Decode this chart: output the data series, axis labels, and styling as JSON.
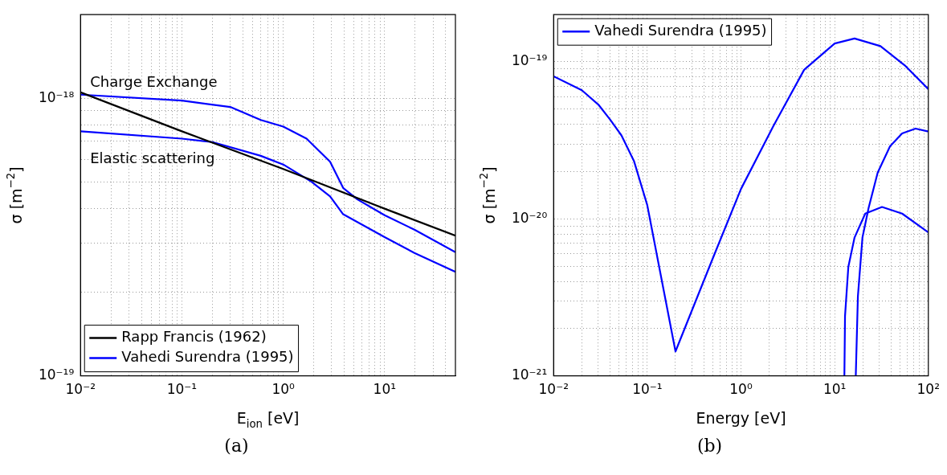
{
  "chart_data": [
    {
      "type": "line",
      "xlabel": "E$_{ion}$ [eV]",
      "ylabel": "σ [m$^{−2}$]",
      "log": "xy",
      "grid": true,
      "legend": "bottom left",
      "marker": "none",
      "line_style": "solid",
      "xlim": [
        0.01,
        50
      ],
      "ylim": [
        1e-19,
        2e-18
      ],
      "xticks": [
        {
          "value": 0.01,
          "label": "10⁻²"
        },
        {
          "value": 0.02,
          "label": null
        },
        {
          "value": 0.03,
          "label": null
        },
        {
          "value": 0.04,
          "label": null
        },
        {
          "value": 0.05,
          "label": null
        },
        {
          "value": 0.06,
          "label": null
        },
        {
          "value": 0.07,
          "label": null
        },
        {
          "value": 0.08,
          "label": null
        },
        {
          "value": 0.09,
          "label": null
        },
        {
          "value": 0.1,
          "label": "10⁻¹"
        },
        {
          "value": 0.2,
          "label": null
        },
        {
          "value": 0.3,
          "label": null
        },
        {
          "value": 0.4,
          "label": null
        },
        {
          "value": 0.5,
          "label": null
        },
        {
          "value": 0.6,
          "label": null
        },
        {
          "value": 0.7,
          "label": null
        },
        {
          "value": 0.8,
          "label": null
        },
        {
          "value": 0.9,
          "label": null
        },
        {
          "value": 1,
          "label": "10⁰"
        },
        {
          "value": 2,
          "label": null
        },
        {
          "value": 3,
          "label": null
        },
        {
          "value": 4,
          "label": null
        },
        {
          "value": 5,
          "label": null
        },
        {
          "value": 6,
          "label": null
        },
        {
          "value": 7,
          "label": null
        },
        {
          "value": 8,
          "label": null
        },
        {
          "value": 9,
          "label": null
        },
        {
          "value": 10,
          "label": "10¹"
        },
        {
          "value": 20,
          "label": null
        },
        {
          "value": 30,
          "label": null
        },
        {
          "value": 40,
          "label": null
        }
      ],
      "yticks": [
        {
          "value": 1e-19,
          "label": "10⁻¹⁹"
        },
        {
          "value": 2e-19,
          "label": null
        },
        {
          "value": 3e-19,
          "label": null
        },
        {
          "value": 4e-19,
          "label": null
        },
        {
          "value": 5e-19,
          "label": null
        },
        {
          "value": 6e-19,
          "label": null
        },
        {
          "value": 7e-19,
          "label": null
        },
        {
          "value": 8e-19,
          "label": null
        },
        {
          "value": 9e-19,
          "label": null
        },
        {
          "value": 1e-18,
          "label": "10⁻¹⁸"
        }
      ],
      "series": [
        {
          "name": "Rapp Francis (1962)",
          "color": "#000000",
          "x": [
            0.01,
            0.1,
            1,
            10,
            50
          ],
          "values": [
            1.05e-18,
            7.6e-19,
            5.56e-19,
            4e-19,
            3.2e-19
          ]
        },
        {
          "name": "Vahedi Surendra (1995)",
          "color": "#0000ff",
          "x": [
            0.01,
            0.1,
            0.3,
            0.6,
            1,
            1.7,
            2.9,
            3.9,
            5.4,
            10,
            19.7,
            50
          ],
          "values": [
            1.03e-18,
            9.8e-19,
            9.3e-19,
            8.35e-19,
            7.9e-19,
            7.15e-19,
            5.9e-19,
            4.75e-19,
            4.32e-19,
            3.79e-19,
            3.36e-19,
            2.79e-19
          ]
        },
        {
          "color": "#0000ff",
          "x": [
            0.01,
            0.1,
            0.2,
            0.6,
            1,
            1.9,
            2.9,
            3.9,
            10,
            19.7,
            50
          ],
          "values": [
            7.6e-19,
            7.15e-19,
            6.95e-19,
            6.2e-19,
            5.77e-19,
            5e-19,
            4.43e-19,
            3.82e-19,
            3.16e-19,
            2.77e-19,
            2.37e-19
          ]
        }
      ],
      "annotations": [
        "Charge Exchange",
        "Elastic scattering",
        "(a)"
      ]
    },
    {
      "type": "line",
      "xlabel": "Energy [eV]",
      "ylabel": "σ [m$^{−2}$]",
      "log": "xy",
      "grid": true,
      "legend": "top left",
      "marker": "none",
      "line_style": "solid",
      "xlim": [
        0.01,
        100
      ],
      "ylim": [
        1e-21,
        2e-19
      ],
      "xticks": [
        {
          "value": 0.01,
          "label": "10⁻²"
        },
        {
          "value": 0.02,
          "label": null
        },
        {
          "value": 0.03,
          "label": null
        },
        {
          "value": 0.04,
          "label": null
        },
        {
          "value": 0.05,
          "label": null
        },
        {
          "value": 0.06,
          "label": null
        },
        {
          "value": 0.07,
          "label": null
        },
        {
          "value": 0.08,
          "label": null
        },
        {
          "value": 0.09,
          "label": null
        },
        {
          "value": 0.1,
          "label": "10⁻¹"
        },
        {
          "value": 0.2,
          "label": null
        },
        {
          "value": 0.3,
          "label": null
        },
        {
          "value": 0.4,
          "label": null
        },
        {
          "value": 0.5,
          "label": null
        },
        {
          "value": 0.6,
          "label": null
        },
        {
          "value": 0.7,
          "label": null
        },
        {
          "value": 0.8,
          "label": null
        },
        {
          "value": 0.9,
          "label": null
        },
        {
          "value": 1,
          "label": "10⁰"
        },
        {
          "value": 2,
          "label": null
        },
        {
          "value": 3,
          "label": null
        },
        {
          "value": 4,
          "label": null
        },
        {
          "value": 5,
          "label": null
        },
        {
          "value": 6,
          "label": null
        },
        {
          "value": 7,
          "label": null
        },
        {
          "value": 8,
          "label": null
        },
        {
          "value": 9,
          "label": null
        },
        {
          "value": 10,
          "label": "10¹"
        },
        {
          "value": 20,
          "label": null
        },
        {
          "value": 30,
          "label": null
        },
        {
          "value": 40,
          "label": null
        },
        {
          "value": 50,
          "label": null
        },
        {
          "value": 60,
          "label": null
        },
        {
          "value": 70,
          "label": null
        },
        {
          "value": 80,
          "label": null
        },
        {
          "value": 90,
          "label": null
        },
        {
          "value": 100,
          "label": "10²"
        }
      ],
      "yticks": [
        {
          "value": 1e-21,
          "label": "10⁻²¹"
        },
        {
          "value": 2e-21,
          "label": null
        },
        {
          "value": 3e-21,
          "label": null
        },
        {
          "value": 4e-21,
          "label": null
        },
        {
          "value": 5e-21,
          "label": null
        },
        {
          "value": 6e-21,
          "label": null
        },
        {
          "value": 7e-21,
          "label": null
        },
        {
          "value": 8e-21,
          "label": null
        },
        {
          "value": 9e-21,
          "label": null
        },
        {
          "value": 1e-20,
          "label": "10⁻²⁰"
        },
        {
          "value": 2e-20,
          "label": null
        },
        {
          "value": 3e-20,
          "label": null
        },
        {
          "value": 4e-20,
          "label": null
        },
        {
          "value": 5e-20,
          "label": null
        },
        {
          "value": 6e-20,
          "label": null
        },
        {
          "value": 7e-20,
          "label": null
        },
        {
          "value": 8e-20,
          "label": null
        },
        {
          "value": 9e-20,
          "label": null
        },
        {
          "value": 1e-19,
          "label": "10⁻¹⁹"
        }
      ],
      "series": [
        {
          "name": "Vahedi Surendra (1995)",
          "color": "#0000ff",
          "x": [
            0.01,
            0.02,
            0.03,
            0.04,
            0.053,
            0.072,
            0.1,
            0.2,
            0.5,
            1,
            2.23,
            4.72,
            10,
            16.3,
            30.8,
            56,
            100
          ],
          "values": [
            8.1e-20,
            6.6e-20,
            5.35e-20,
            4.3e-20,
            3.4e-20,
            2.34e-20,
            1.22e-20,
            1.43e-21,
            5.6e-21,
            1.55e-20,
            3.93e-20,
            8.9e-20,
            1.31e-19,
            1.41e-19,
            1.26e-19,
            9.5e-20,
            6.7e-20
          ]
        },
        {
          "color": "#0000ff",
          "x": [
            16.8,
            17.7,
            19.8,
            23,
            28.8,
            39,
            52.5,
            73,
            100
          ],
          "values": [
            1e-21,
            3.2e-21,
            7.6e-21,
            1.17e-20,
            1.97e-20,
            2.9e-20,
            3.5e-20,
            3.76e-20,
            3.6e-20
          ]
        },
        {
          "color": "#0000ff",
          "x": [
            12.7,
            12.9,
            14,
            16.3,
            21.2,
            32,
            52.5,
            100
          ],
          "values": [
            1e-21,
            2.4e-21,
            4.95e-21,
            7.6e-21,
            1.08e-20,
            1.19e-20,
            1.08e-20,
            8.2e-21
          ]
        }
      ],
      "annotations": [
        "(b)"
      ]
    }
  ]
}
